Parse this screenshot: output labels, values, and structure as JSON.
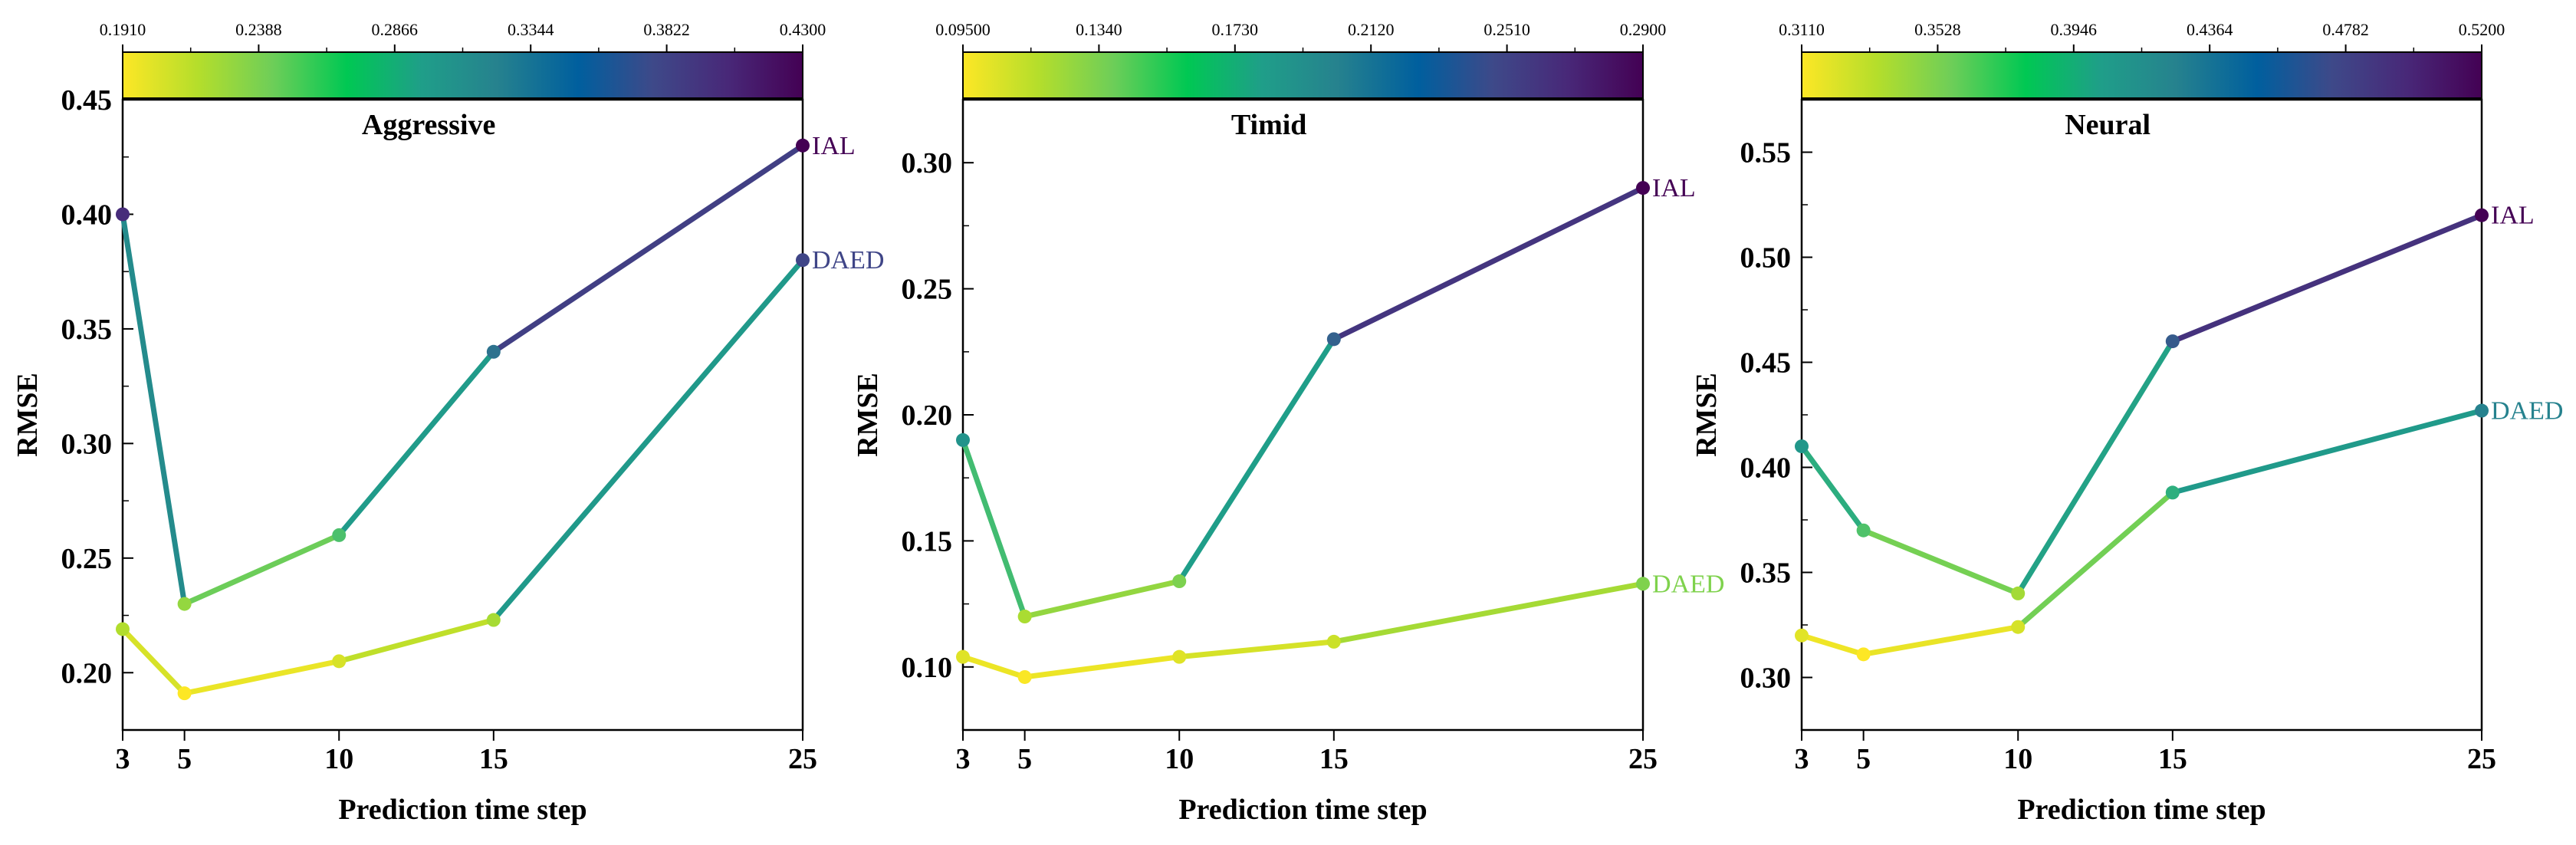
{
  "chart_data": [
    {
      "type": "line",
      "title": "Aggressive",
      "xlabel": "Prediction time step",
      "ylabel": "RMSE",
      "x": [
        3,
        5,
        10,
        15,
        25
      ],
      "xlim": [
        3,
        25
      ],
      "ylim": [
        0.175,
        0.45
      ],
      "yticks": [
        0.2,
        0.25,
        0.3,
        0.35,
        0.4,
        0.45
      ],
      "ytick_labels": [
        "0.20",
        "0.25",
        "0.30",
        "0.35",
        "0.40",
        "0.45"
      ],
      "colorbar": {
        "min": 0.191,
        "max": 0.43,
        "ticks": [
          "0.1910",
          "0.2388",
          "0.2866",
          "0.3344",
          "0.3822",
          "0.4300"
        ]
      },
      "series": [
        {
          "name": "IAL",
          "values": [
            0.4,
            0.23,
            0.26,
            0.34,
            0.43
          ]
        },
        {
          "name": "DAED",
          "values": [
            0.219,
            0.191,
            0.205,
            0.223,
            0.38
          ]
        }
      ]
    },
    {
      "type": "line",
      "title": "Timid",
      "xlabel": "Prediction time step",
      "ylabel": "RMSE",
      "x": [
        3,
        5,
        10,
        15,
        25
      ],
      "xlim": [
        3,
        25
      ],
      "ylim": [
        0.075,
        0.325
      ],
      "yticks": [
        0.1,
        0.15,
        0.2,
        0.25,
        0.3
      ],
      "ytick_labels": [
        "0.10",
        "0.15",
        "0.20",
        "0.25",
        "0.30"
      ],
      "colorbar": {
        "min": 0.095,
        "max": 0.29,
        "ticks": [
          "0.09500",
          "0.1340",
          "0.1730",
          "0.2120",
          "0.2510",
          "0.2900"
        ]
      },
      "series": [
        {
          "name": "IAL",
          "values": [
            0.19,
            0.12,
            0.134,
            0.23,
            0.29
          ]
        },
        {
          "name": "DAED",
          "values": [
            0.104,
            0.096,
            0.104,
            0.11,
            0.133
          ]
        }
      ]
    },
    {
      "type": "line",
      "title": "Neural",
      "xlabel": "Prediction time step",
      "ylabel": "RMSE",
      "x": [
        3,
        5,
        10,
        15,
        25
      ],
      "xlim": [
        3,
        25
      ],
      "ylim": [
        0.275,
        0.575
      ],
      "yticks": [
        0.3,
        0.35,
        0.4,
        0.45,
        0.5,
        0.55
      ],
      "ytick_labels": [
        "0.30",
        "0.35",
        "0.40",
        "0.45",
        "0.50",
        "0.55"
      ],
      "colorbar": {
        "min": 0.311,
        "max": 0.52,
        "ticks": [
          "0.3110",
          "0.3528",
          "0.3946",
          "0.4364",
          "0.4782",
          "0.5200"
        ]
      },
      "series": [
        {
          "name": "IAL",
          "values": [
            0.41,
            0.37,
            0.34,
            0.46,
            0.52
          ]
        },
        {
          "name": "DAED",
          "values": [
            0.32,
            0.311,
            0.324,
            0.388,
            0.427
          ]
        }
      ]
    }
  ],
  "colormap": [
    "#fde725",
    "#b5de2b",
    "#6ece58",
    "#35b779",
    "#1f9e89",
    "#26828e",
    "#31688e",
    "#3e4989",
    "#482878",
    "#440154"
  ],
  "xtick_labels": [
    "3",
    "5",
    "10",
    "15",
    "25"
  ]
}
